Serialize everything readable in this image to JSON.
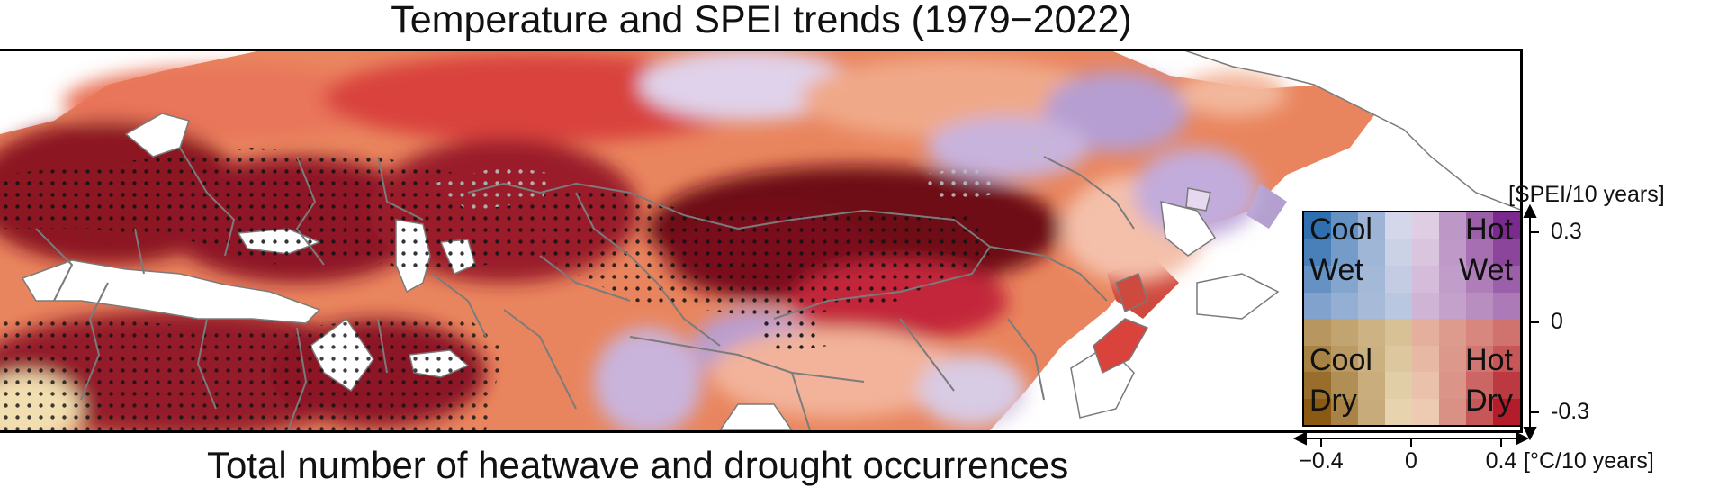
{
  "title": "Temperature and SPEI trends (1979−2022)",
  "bottom_title": "Total number of heatwave and drought occurrences",
  "legend": {
    "quadrants": {
      "cool_wet": [
        "Cool",
        "Wet"
      ],
      "hot_wet": [
        "Hot",
        "Wet"
      ],
      "cool_dry": [
        "Cool",
        "Dry"
      ],
      "hot_dry": [
        "Hot",
        "Dry"
      ]
    },
    "y_axis_label": "[SPEI/10 years]",
    "y_ticks": [
      {
        "value": 0.3,
        "label": "0.3"
      },
      {
        "value": 0,
        "label": "0"
      },
      {
        "value": -0.3,
        "label": "-0.3"
      }
    ],
    "x_axis_label": "[°C/10 years]",
    "x_ticks": [
      {
        "value": -0.4,
        "label": "−0.4"
      },
      {
        "value": 0,
        "label": "0"
      },
      {
        "value": 0.4,
        "label": "0.4"
      }
    ],
    "x_range": [
      -0.4,
      0.4
    ],
    "y_range": [
      -0.3,
      0.3
    ],
    "colors": {
      "cool_wet": "#2f6fb0",
      "hot_wet": "#7a2a8c",
      "neutral_wet": "#f0e8f2",
      "cool_dry": "#8a5a12",
      "hot_dry": "#b41c2c",
      "neutral_dry": "#f6e8c8",
      "extreme_hot_dry": "#5a0a12",
      "land_border": "#7a7a7a",
      "ocean": "#ffffff"
    }
  },
  "map": {
    "region": "Eurasia and North Africa",
    "stippling": "black and grey dots mark significant grid cells"
  }
}
